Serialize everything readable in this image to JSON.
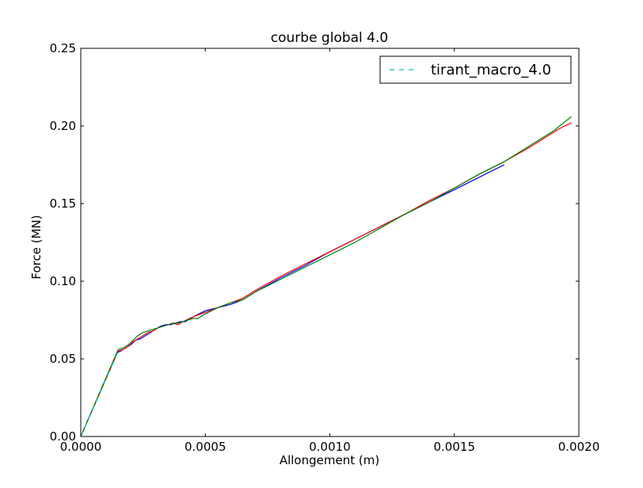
{
  "chart_data": {
    "type": "line",
    "title": "courbe global 4.0",
    "xlabel": "Allongement (m)",
    "ylabel": "Force (MN)",
    "xlim": [
      0.0,
      0.002
    ],
    "ylim": [
      0.0,
      0.25
    ],
    "x_ticks": [
      0.0,
      0.0005,
      0.001,
      0.0015,
      0.002
    ],
    "x_tick_labels": [
      "0.0000",
      "0.0005",
      "0.0010",
      "0.0015",
      "0.0020"
    ],
    "y_ticks": [
      0.0,
      0.05,
      0.1,
      0.15,
      0.2,
      0.25
    ],
    "y_tick_labels": [
      "0.00",
      "0.05",
      "0.10",
      "0.15",
      "0.20",
      "0.25"
    ],
    "grid": false,
    "legend_position": "top-right",
    "series": [
      {
        "name": "",
        "color": "#0000ff",
        "style": "solid",
        "x": [
          0.0,
          0.000145,
          0.00016,
          0.00018,
          0.0002,
          0.00022,
          0.00024,
          0.00026,
          0.00028,
          0.0003,
          0.00032,
          0.00034,
          0.00036,
          0.00038,
          0.0004,
          0.00042,
          0.00045,
          0.0005,
          0.00055,
          0.0006,
          0.00065,
          0.0007,
          0.0008,
          0.0009,
          0.001,
          0.0011,
          0.0012,
          0.0013,
          0.0014,
          0.0015,
          0.0016,
          0.0017
        ],
        "y": [
          0.0,
          0.054,
          0.055,
          0.057,
          0.059,
          0.062,
          0.063,
          0.065,
          0.067,
          0.069,
          0.071,
          0.072,
          0.072,
          0.073,
          0.074,
          0.074,
          0.077,
          0.081,
          0.083,
          0.085,
          0.088,
          0.093,
          0.102,
          0.11,
          0.119,
          0.127,
          0.135,
          0.143,
          0.151,
          0.159,
          0.167,
          0.175
        ]
      },
      {
        "name": "",
        "color": "#ff0000",
        "style": "solid",
        "x": [
          0.0,
          0.00015,
          0.00017,
          0.00019,
          0.00021,
          0.00023,
          0.00025,
          0.00027,
          0.00029,
          0.00031,
          0.00033,
          0.00035,
          0.00037,
          0.00039,
          0.00041,
          0.00045,
          0.0005,
          0.00055,
          0.0006,
          0.00065,
          0.0007,
          0.0008,
          0.0009,
          0.001,
          0.0011,
          0.0012,
          0.0013,
          0.0014,
          0.0015,
          0.0016,
          0.0017,
          0.0018,
          0.00185,
          0.0019,
          0.00193,
          0.00197
        ],
        "y": [
          0.0,
          0.055,
          0.056,
          0.058,
          0.061,
          0.063,
          0.065,
          0.067,
          0.068,
          0.07,
          0.071,
          0.072,
          0.073,
          0.072,
          0.074,
          0.077,
          0.08,
          0.083,
          0.086,
          0.089,
          0.094,
          0.103,
          0.111,
          0.119,
          0.127,
          0.135,
          0.143,
          0.152,
          0.16,
          0.169,
          0.177,
          0.186,
          0.191,
          0.196,
          0.199,
          0.202
        ]
      },
      {
        "name": "",
        "color": "#008000",
        "style": "solid",
        "x": [
          0.0,
          0.00015,
          0.00017,
          0.00019,
          0.00021,
          0.00023,
          0.00025,
          0.00027,
          0.00029,
          0.00031,
          0.00033,
          0.00035,
          0.00037,
          0.00039,
          0.00041,
          0.00045,
          0.00047,
          0.0005,
          0.00055,
          0.0006,
          0.00065,
          0.0007,
          0.0008,
          0.0009,
          0.001,
          0.0011,
          0.0012,
          0.0013,
          0.0014,
          0.0015,
          0.0016,
          0.0017,
          0.0018,
          0.0019,
          0.00197
        ],
        "y": [
          0.0,
          0.056,
          0.057,
          0.059,
          0.062,
          0.065,
          0.067,
          0.068,
          0.069,
          0.07,
          0.071,
          0.072,
          0.073,
          0.073,
          0.074,
          0.076,
          0.076,
          0.079,
          0.083,
          0.086,
          0.088,
          0.093,
          0.101,
          0.109,
          0.117,
          0.125,
          0.134,
          0.143,
          0.151,
          0.16,
          0.169,
          0.177,
          0.187,
          0.197,
          0.206
        ]
      },
      {
        "name": "tirant_macro_4.0",
        "color": "#00bfbf",
        "style": "dashed",
        "x": [
          0.0,
          0.00015
        ],
        "y": [
          0.0,
          0.055
        ]
      }
    ]
  }
}
